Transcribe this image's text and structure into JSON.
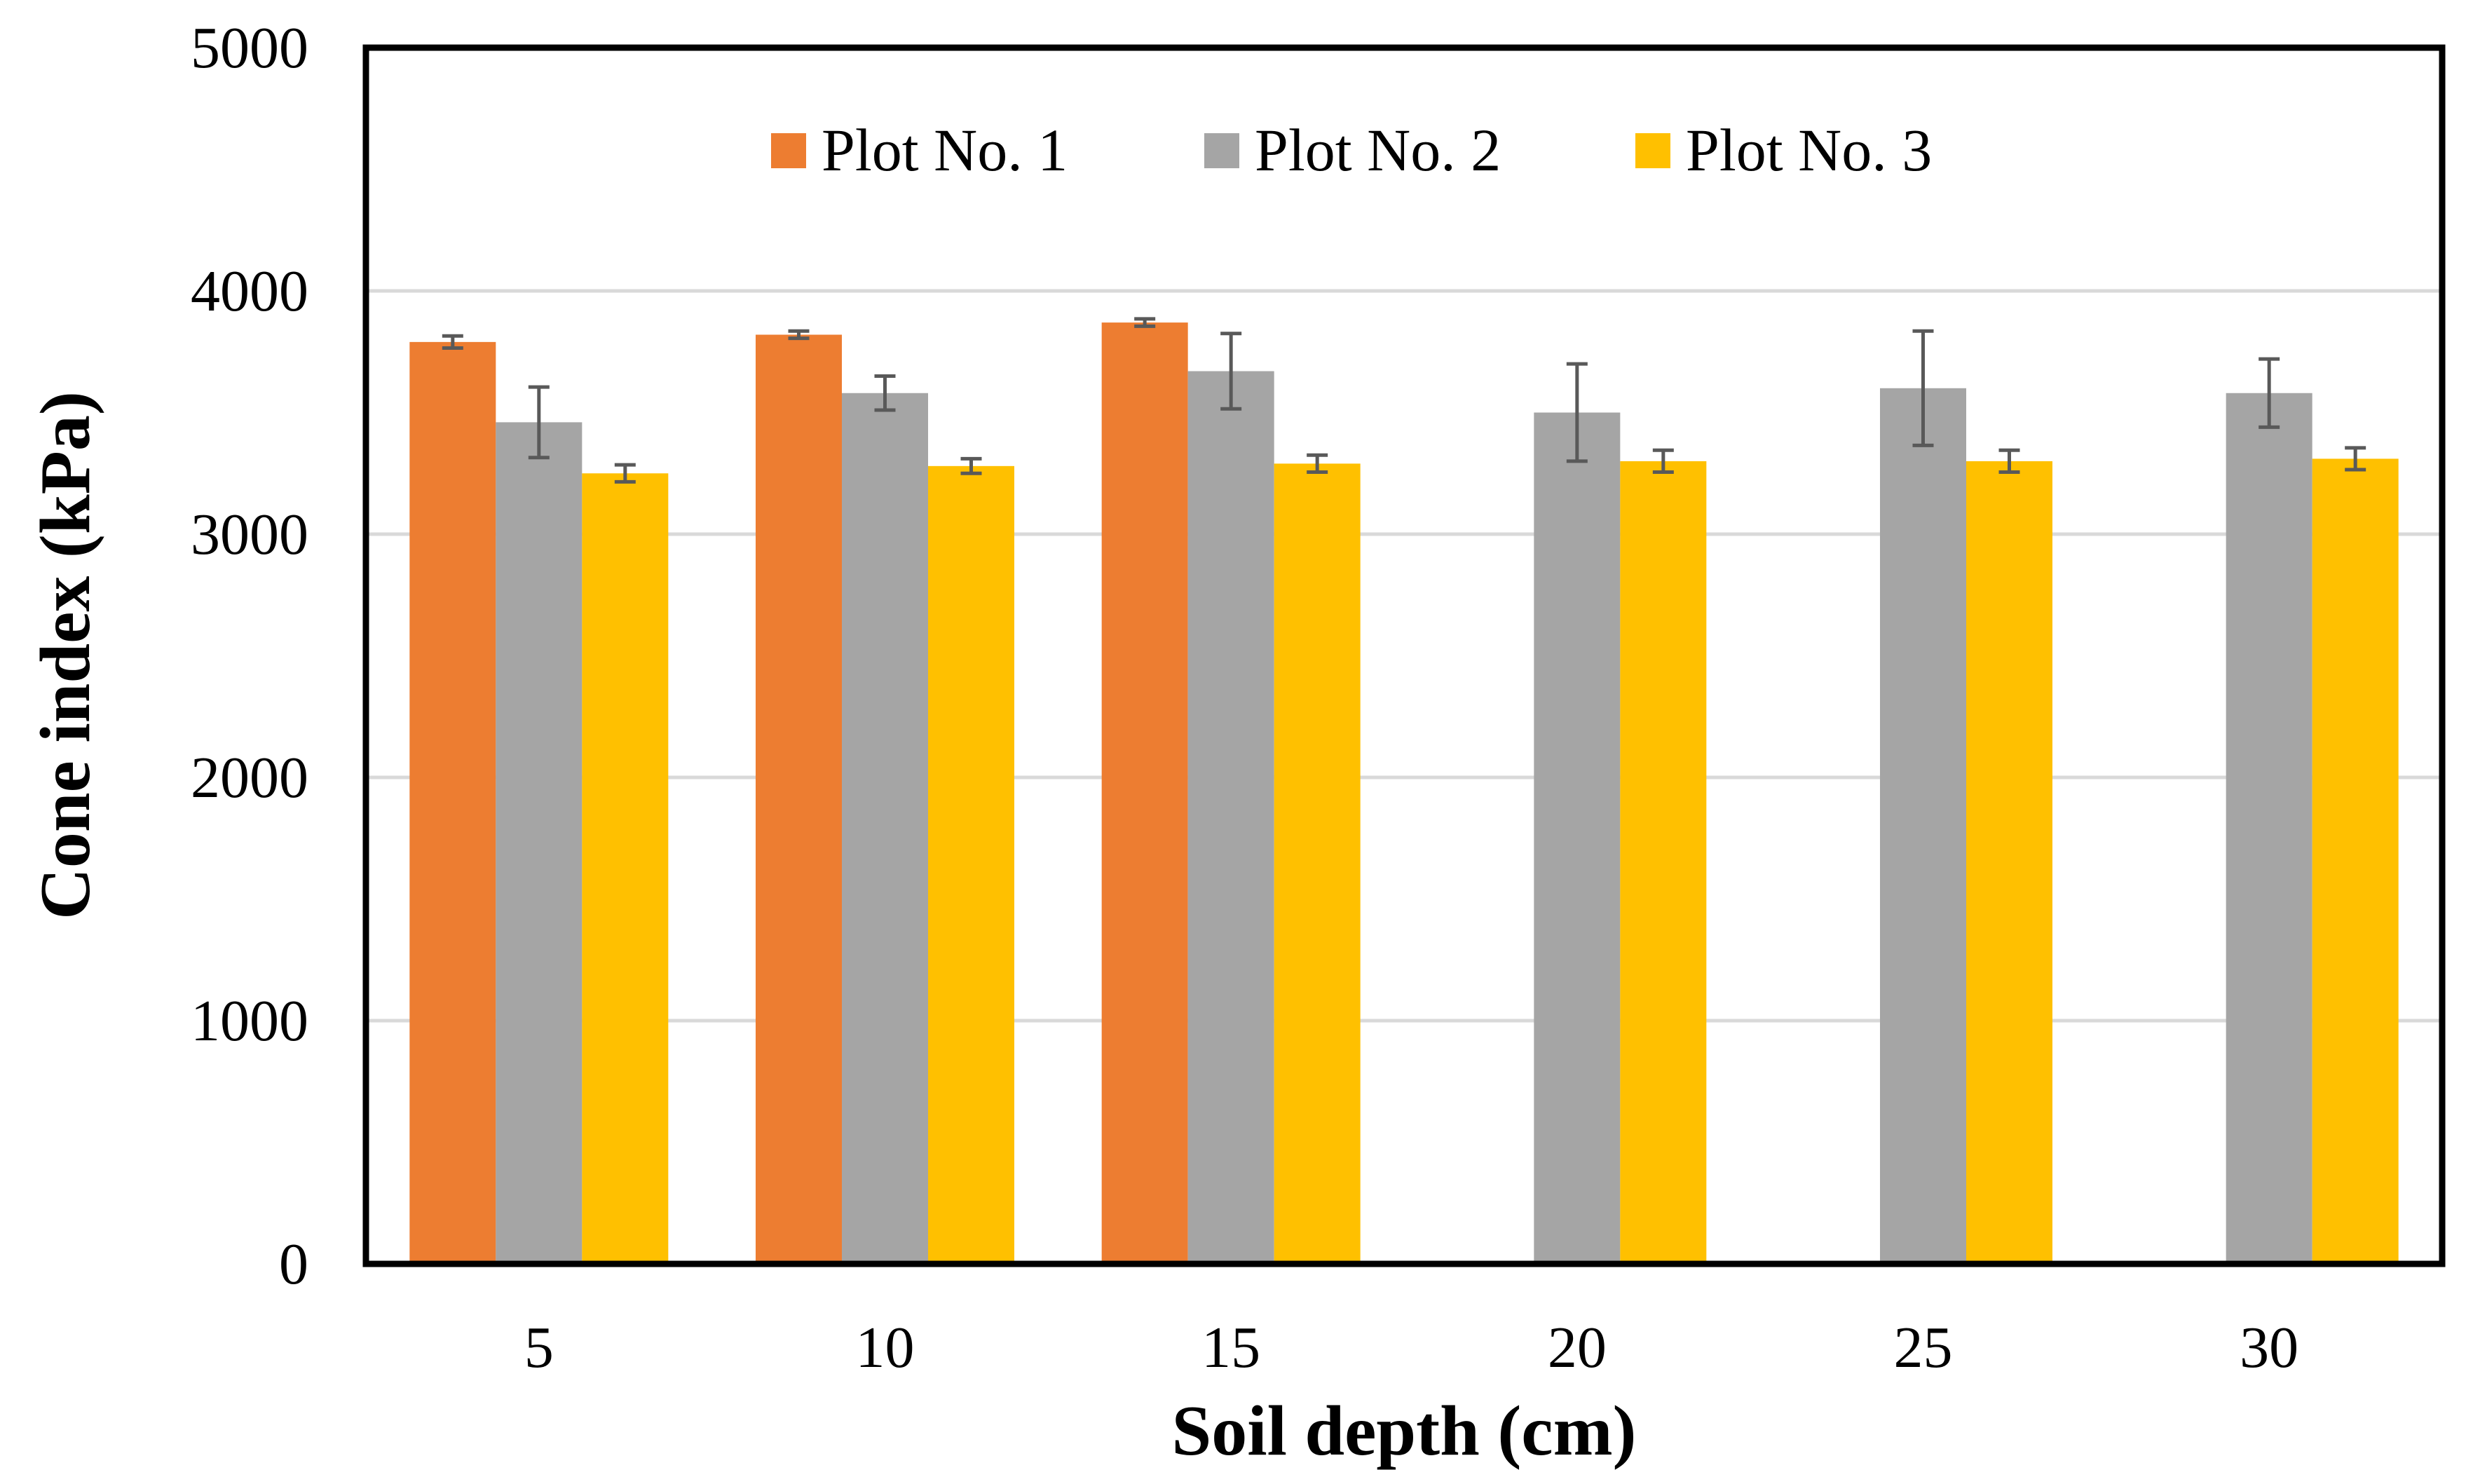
{
  "chart_data": {
    "type": "bar",
    "xlabel": "Soil depth (cm)",
    "ylabel": "Cone index (kPa)",
    "categories": [
      "5",
      "10",
      "15",
      "20",
      "25",
      "30"
    ],
    "ylim": [
      0,
      5000
    ],
    "yticks": [
      "0",
      "1000",
      "2000",
      "3000",
      "4000",
      "5000"
    ],
    "grid": true,
    "legend_position": "top-center",
    "series": [
      {
        "name": "Plot No. 1",
        "color": "#ED7D31",
        "values": [
          3790,
          3820,
          3870,
          null,
          null,
          null
        ],
        "errors": [
          25,
          15,
          15,
          null,
          null,
          null
        ]
      },
      {
        "name": "Plot No. 2",
        "color": "#A5A5A5",
        "values": [
          3460,
          3580,
          3670,
          3500,
          3600,
          3580
        ],
        "errors": [
          145,
          70,
          155,
          200,
          235,
          140
        ]
      },
      {
        "name": "Plot No. 3",
        "color": "#FFC000",
        "values": [
          3250,
          3280,
          3290,
          3300,
          3300,
          3310
        ],
        "errors": [
          35,
          30,
          35,
          45,
          45,
          45
        ]
      }
    ]
  }
}
